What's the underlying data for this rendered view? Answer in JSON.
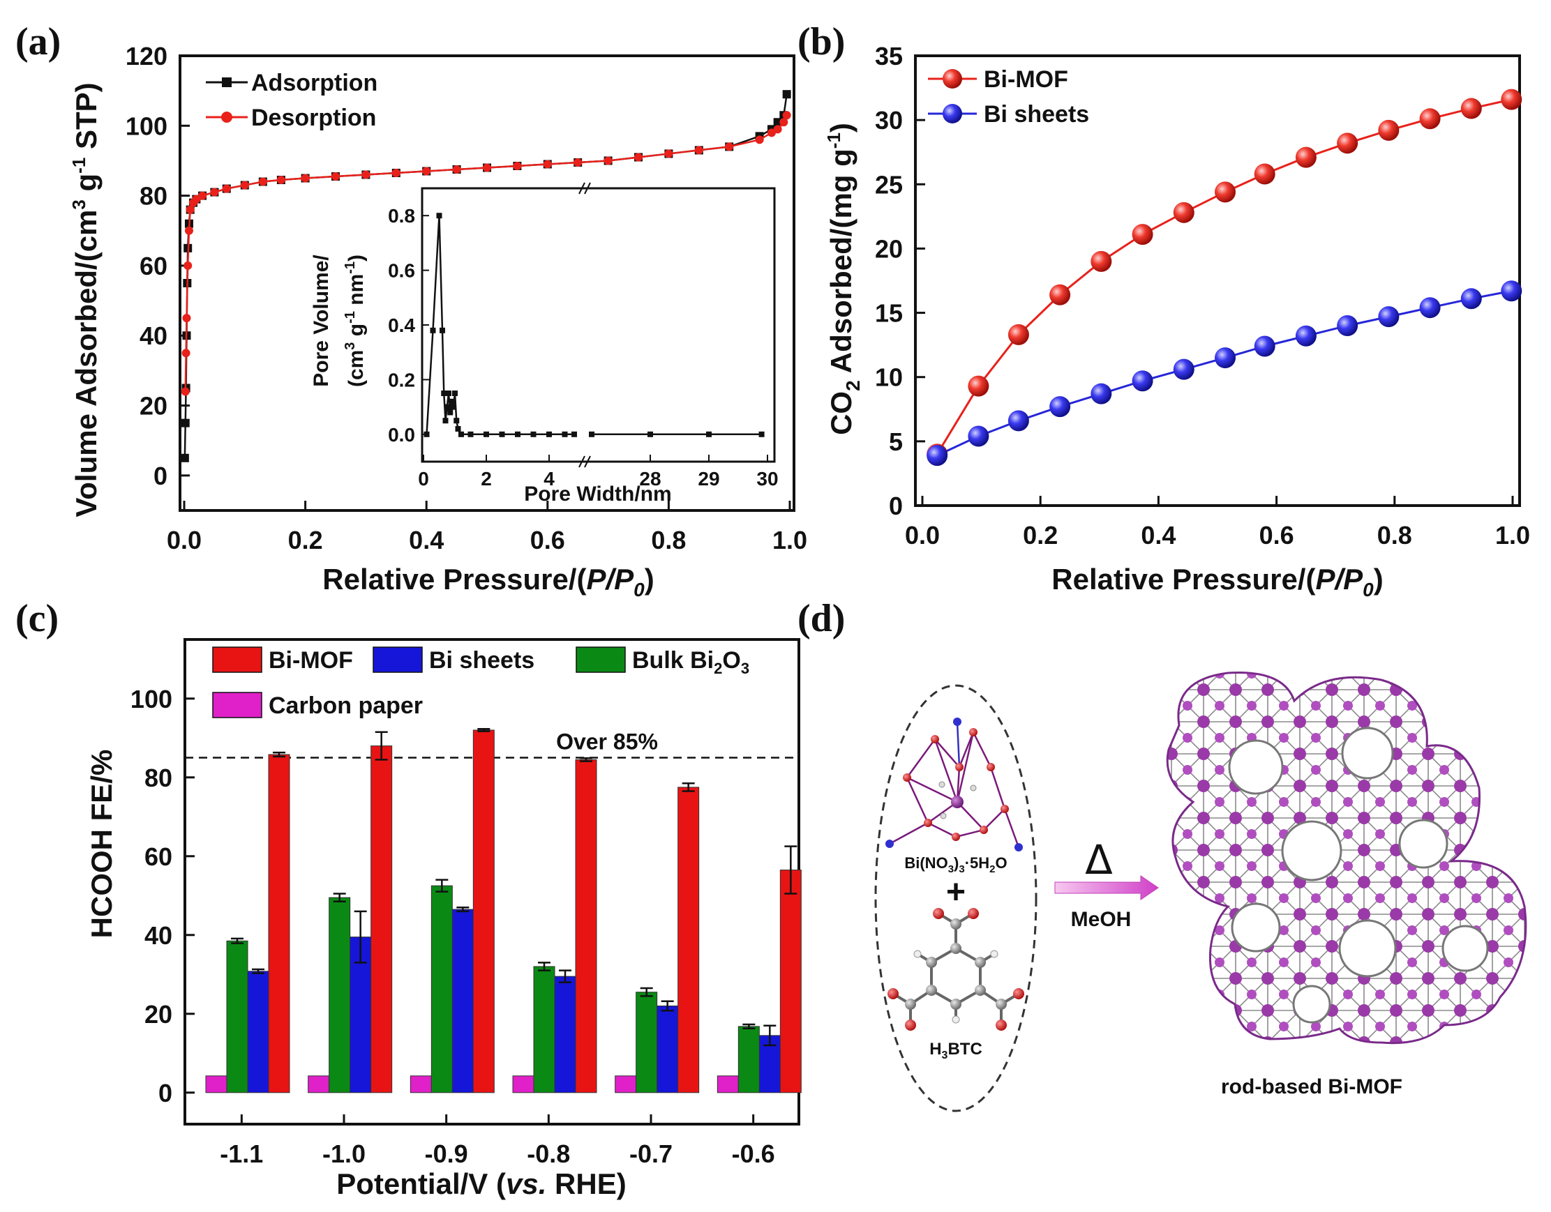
{
  "panel_labels": {
    "a": "(a)",
    "b": "(b)",
    "c": "(c)",
    "d": "(d)"
  },
  "chart_data": [
    {
      "id": "a",
      "type": "line",
      "xlabel_main": "Relative Pressure/(",
      "xlabel_var": "P/P",
      "xlabel_sub": "0",
      "xlabel_end": ")",
      "ylabel_main": "Volume Adsorbed/(cm",
      "ylabel_sup1": "3",
      "ylabel_mid": " g",
      "ylabel_sup2": "-1",
      "ylabel_end": " STP)",
      "xlim": [
        0,
        1.0
      ],
      "ylim": [
        -10,
        120
      ],
      "xticks": [
        "0.0",
        "0.2",
        "0.4",
        "0.6",
        "0.8",
        "1.0"
      ],
      "yticks": [
        "0",
        "20",
        "40",
        "60",
        "80",
        "100",
        "120"
      ],
      "series": [
        {
          "name": "Adsorption",
          "color": "#111111",
          "marker": "square",
          "x": [
            0.001,
            0.002,
            0.003,
            0.004,
            0.005,
            0.006,
            0.008,
            0.01,
            0.015,
            0.02,
            0.03,
            0.05,
            0.07,
            0.1,
            0.13,
            0.16,
            0.2,
            0.25,
            0.3,
            0.35,
            0.4,
            0.45,
            0.5,
            0.55,
            0.6,
            0.65,
            0.7,
            0.75,
            0.8,
            0.85,
            0.9,
            0.95,
            0.97,
            0.98,
            0.99,
            0.995
          ],
          "y": [
            5,
            15,
            25,
            40,
            55,
            65,
            72,
            76,
            78,
            79,
            80,
            81,
            82,
            83,
            84,
            84.5,
            85,
            85.5,
            86,
            86.5,
            87,
            87.5,
            88,
            88.5,
            89,
            89.5,
            90,
            91,
            92,
            93,
            94,
            97,
            99,
            101,
            103,
            109
          ]
        },
        {
          "name": "Desorption",
          "color": "#e8211b",
          "marker": "circle",
          "x": [
            0.995,
            0.99,
            0.98,
            0.97,
            0.95,
            0.9,
            0.85,
            0.8,
            0.75,
            0.7,
            0.65,
            0.6,
            0.55,
            0.5,
            0.45,
            0.4,
            0.35,
            0.3,
            0.25,
            0.2,
            0.16,
            0.13,
            0.1,
            0.07,
            0.05,
            0.03,
            0.02,
            0.015,
            0.01,
            0.008,
            0.006,
            0.004,
            0.003,
            0.002
          ],
          "y": [
            103,
            101,
            99,
            98,
            96,
            94,
            93,
            92,
            91,
            90,
            89.5,
            89,
            88.5,
            88,
            87.5,
            87,
            86.5,
            86,
            85.5,
            85,
            84.5,
            84,
            83,
            82,
            81,
            80,
            79,
            78,
            76,
            70,
            60,
            45,
            35,
            24
          ]
        }
      ],
      "inset": {
        "xlabel": "Pore Width/nm",
        "ylabel_line1": "Pore Volume/",
        "ylabel_line2_a": "(cm",
        "ylabel_line2_sup1": "3",
        "ylabel_line2_b": " g",
        "ylabel_line2_sup2": "-1",
        "ylabel_line2_c": " nm",
        "ylabel_line2_sup3": "-1",
        "ylabel_line2_d": ")",
        "yticks": [
          "0.0",
          "0.2",
          "0.4",
          "0.6",
          "0.8"
        ],
        "xticks_left": [
          "0",
          "2",
          "4"
        ],
        "xticks_right": [
          "28",
          "29",
          "30"
        ],
        "x": [
          0.1,
          0.3,
          0.5,
          0.6,
          0.65,
          0.7,
          0.75,
          0.8,
          0.85,
          0.9,
          0.95,
          1.0,
          1.05,
          1.1,
          1.2,
          1.5,
          2,
          2.5,
          3,
          3.5,
          4,
          4.5,
          4.8
        ],
        "y": [
          0.0,
          0.38,
          0.8,
          0.38,
          0.15,
          0.05,
          0.1,
          0.15,
          0.08,
          0.12,
          0.1,
          0.15,
          0.05,
          0.02,
          0.0,
          0.0,
          0.0,
          0.0,
          0.0,
          0.0,
          0.0,
          0.0,
          0.0
        ],
        "x_right": [
          27.0,
          28.0,
          29.0,
          29.9
        ],
        "y_right": [
          0.0,
          0.0,
          0.0,
          0.0
        ]
      }
    },
    {
      "id": "b",
      "type": "line",
      "xlabel_main": "Relative Pressure/(",
      "xlabel_var": "P/P",
      "xlabel_sub": "0",
      "xlabel_end": ")",
      "ylabel_main": "CO",
      "ylabel_sub": "2",
      "ylabel_mid": " Adsorbed/(mg g",
      "ylabel_sup": "-1",
      "ylabel_end": ")",
      "xlim": [
        0,
        1.0
      ],
      "ylim": [
        0,
        35
      ],
      "xticks": [
        "0.0",
        "0.2",
        "0.4",
        "0.6",
        "0.8",
        "1.0"
      ],
      "yticks": [
        "0",
        "5",
        "10",
        "15",
        "20",
        "25",
        "30",
        "35"
      ],
      "series": [
        {
          "name": "Bi-MOF",
          "color": "#e8211b",
          "x": [
            0.025,
            0.095,
            0.163,
            0.233,
            0.303,
            0.373,
            0.443,
            0.513,
            0.58,
            0.65,
            0.72,
            0.79,
            0.86,
            0.93,
            0.998
          ],
          "y": [
            4.0,
            9.3,
            13.3,
            16.4,
            19.0,
            21.1,
            22.8,
            24.4,
            25.8,
            27.1,
            28.2,
            29.2,
            30.1,
            30.9,
            31.6
          ]
        },
        {
          "name": "Bi sheets",
          "color": "#2626d9",
          "x": [
            0.025,
            0.095,
            0.163,
            0.233,
            0.303,
            0.373,
            0.443,
            0.513,
            0.58,
            0.65,
            0.72,
            0.79,
            0.86,
            0.93,
            0.998
          ],
          "y": [
            3.9,
            5.4,
            6.6,
            7.7,
            8.7,
            9.7,
            10.6,
            11.5,
            12.4,
            13.2,
            14.0,
            14.7,
            15.4,
            16.1,
            16.7
          ]
        }
      ]
    },
    {
      "id": "c",
      "type": "bar",
      "xlabel_main": "Potential/V (",
      "xlabel_ital": "vs.",
      "xlabel_end": " RHE)",
      "ylabel": "HCOOH FE/%",
      "ylim": [
        -8,
        115
      ],
      "yticks": [
        "0",
        "20",
        "40",
        "60",
        "80",
        "100"
      ],
      "categories": [
        "-1.1",
        "-1.0",
        "-0.9",
        "-0.8",
        "-0.7",
        "-0.6"
      ],
      "reference_line": {
        "value": 85,
        "label": "Over 85%"
      },
      "series": [
        {
          "name": "Carbon paper",
          "color": "#e020c8",
          "values": [
            0,
            0,
            0,
            0,
            0,
            0
          ],
          "errors": [
            0,
            0,
            0,
            0,
            0,
            0
          ]
        },
        {
          "name": "Bulk Bi2O3",
          "label_main": "Bulk Bi",
          "label_sub1": "2",
          "label_mid": "O",
          "label_sub2": "3",
          "color": "#0a8a14",
          "values": [
            38.5,
            49.5,
            52.5,
            32.0,
            25.5,
            16.8
          ],
          "errors": [
            0.6,
            1.0,
            1.5,
            1.0,
            1.0,
            0.5
          ]
        },
        {
          "name": "Bi sheets",
          "color": "#1616d8",
          "values": [
            30.8,
            39.5,
            46.5,
            29.5,
            22.0,
            14.5
          ],
          "errors": [
            0.5,
            6.5,
            0.5,
            1.5,
            1.2,
            2.5
          ]
        },
        {
          "name": "Bi-MOF",
          "color": "#e81414",
          "values": [
            85.8,
            88.0,
            92.0,
            84.5,
            77.5,
            56.5
          ],
          "errors": [
            0.5,
            3.5,
            0.3,
            0.4,
            1.0,
            6.0
          ]
        }
      ]
    }
  ],
  "panel_d": {
    "reagent1_main": "Bi(NO",
    "reagent1_sub1": "3",
    "reagent1_mid": ")",
    "reagent1_sub2": "3",
    "reagent1_end": "·5H",
    "reagent1_sub3": "2",
    "reagent1_end2": "O",
    "plus": "+",
    "reagent2_main": "H",
    "reagent2_sub": "3",
    "reagent2_end": "BTC",
    "heat_symbol": "Δ",
    "solvent": "MeOH",
    "product": "rod-based Bi-MOF"
  }
}
